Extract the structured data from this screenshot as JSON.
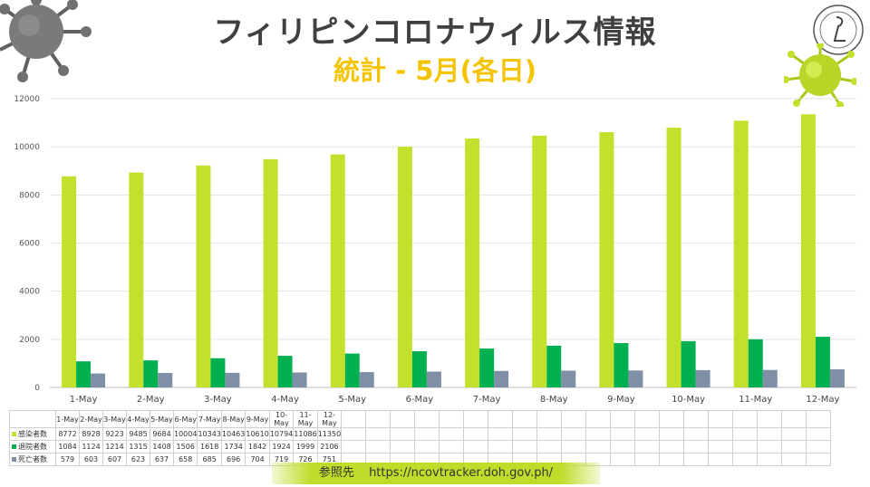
{
  "header": {
    "title": "フィリピンコロナウィルス情報",
    "subtitle": "統計 - 5月(各日)"
  },
  "source": {
    "label": "参照先",
    "url": "https://ncovtracker.doh.gov.ph/"
  },
  "colors": {
    "infected": "#c3e12c",
    "recovered": "#00b050",
    "deaths": "#7f8fa6",
    "title": "#404040",
    "subtitle": "#f5c400"
  },
  "chart_data": {
    "type": "bar",
    "categories": [
      "1-May",
      "2-May",
      "3-May",
      "4-May",
      "5-May",
      "6-May",
      "7-May",
      "8-May",
      "9-May",
      "10-May",
      "11-May",
      "12-May"
    ],
    "series": [
      {
        "name": "感染者数",
        "values": [
          8772,
          8928,
          9223,
          9485,
          9684,
          10004,
          10343,
          10463,
          10610,
          10794,
          11086,
          11350
        ]
      },
      {
        "name": "退院者数",
        "values": [
          1084,
          1124,
          1214,
          1315,
          1408,
          1506,
          1618,
          1734,
          1842,
          1924,
          1999,
          2106
        ]
      },
      {
        "name": "死亡者数",
        "values": [
          579,
          603,
          607,
          623,
          637,
          658,
          685,
          696,
          704,
          719,
          726,
          751
        ]
      }
    ],
    "yticks": [
      "0",
      "2000",
      "4000",
      "6000",
      "8000",
      "10000",
      "12000"
    ],
    "ylim": [
      0,
      12000
    ],
    "grid": true,
    "legend": "data-table-below"
  }
}
